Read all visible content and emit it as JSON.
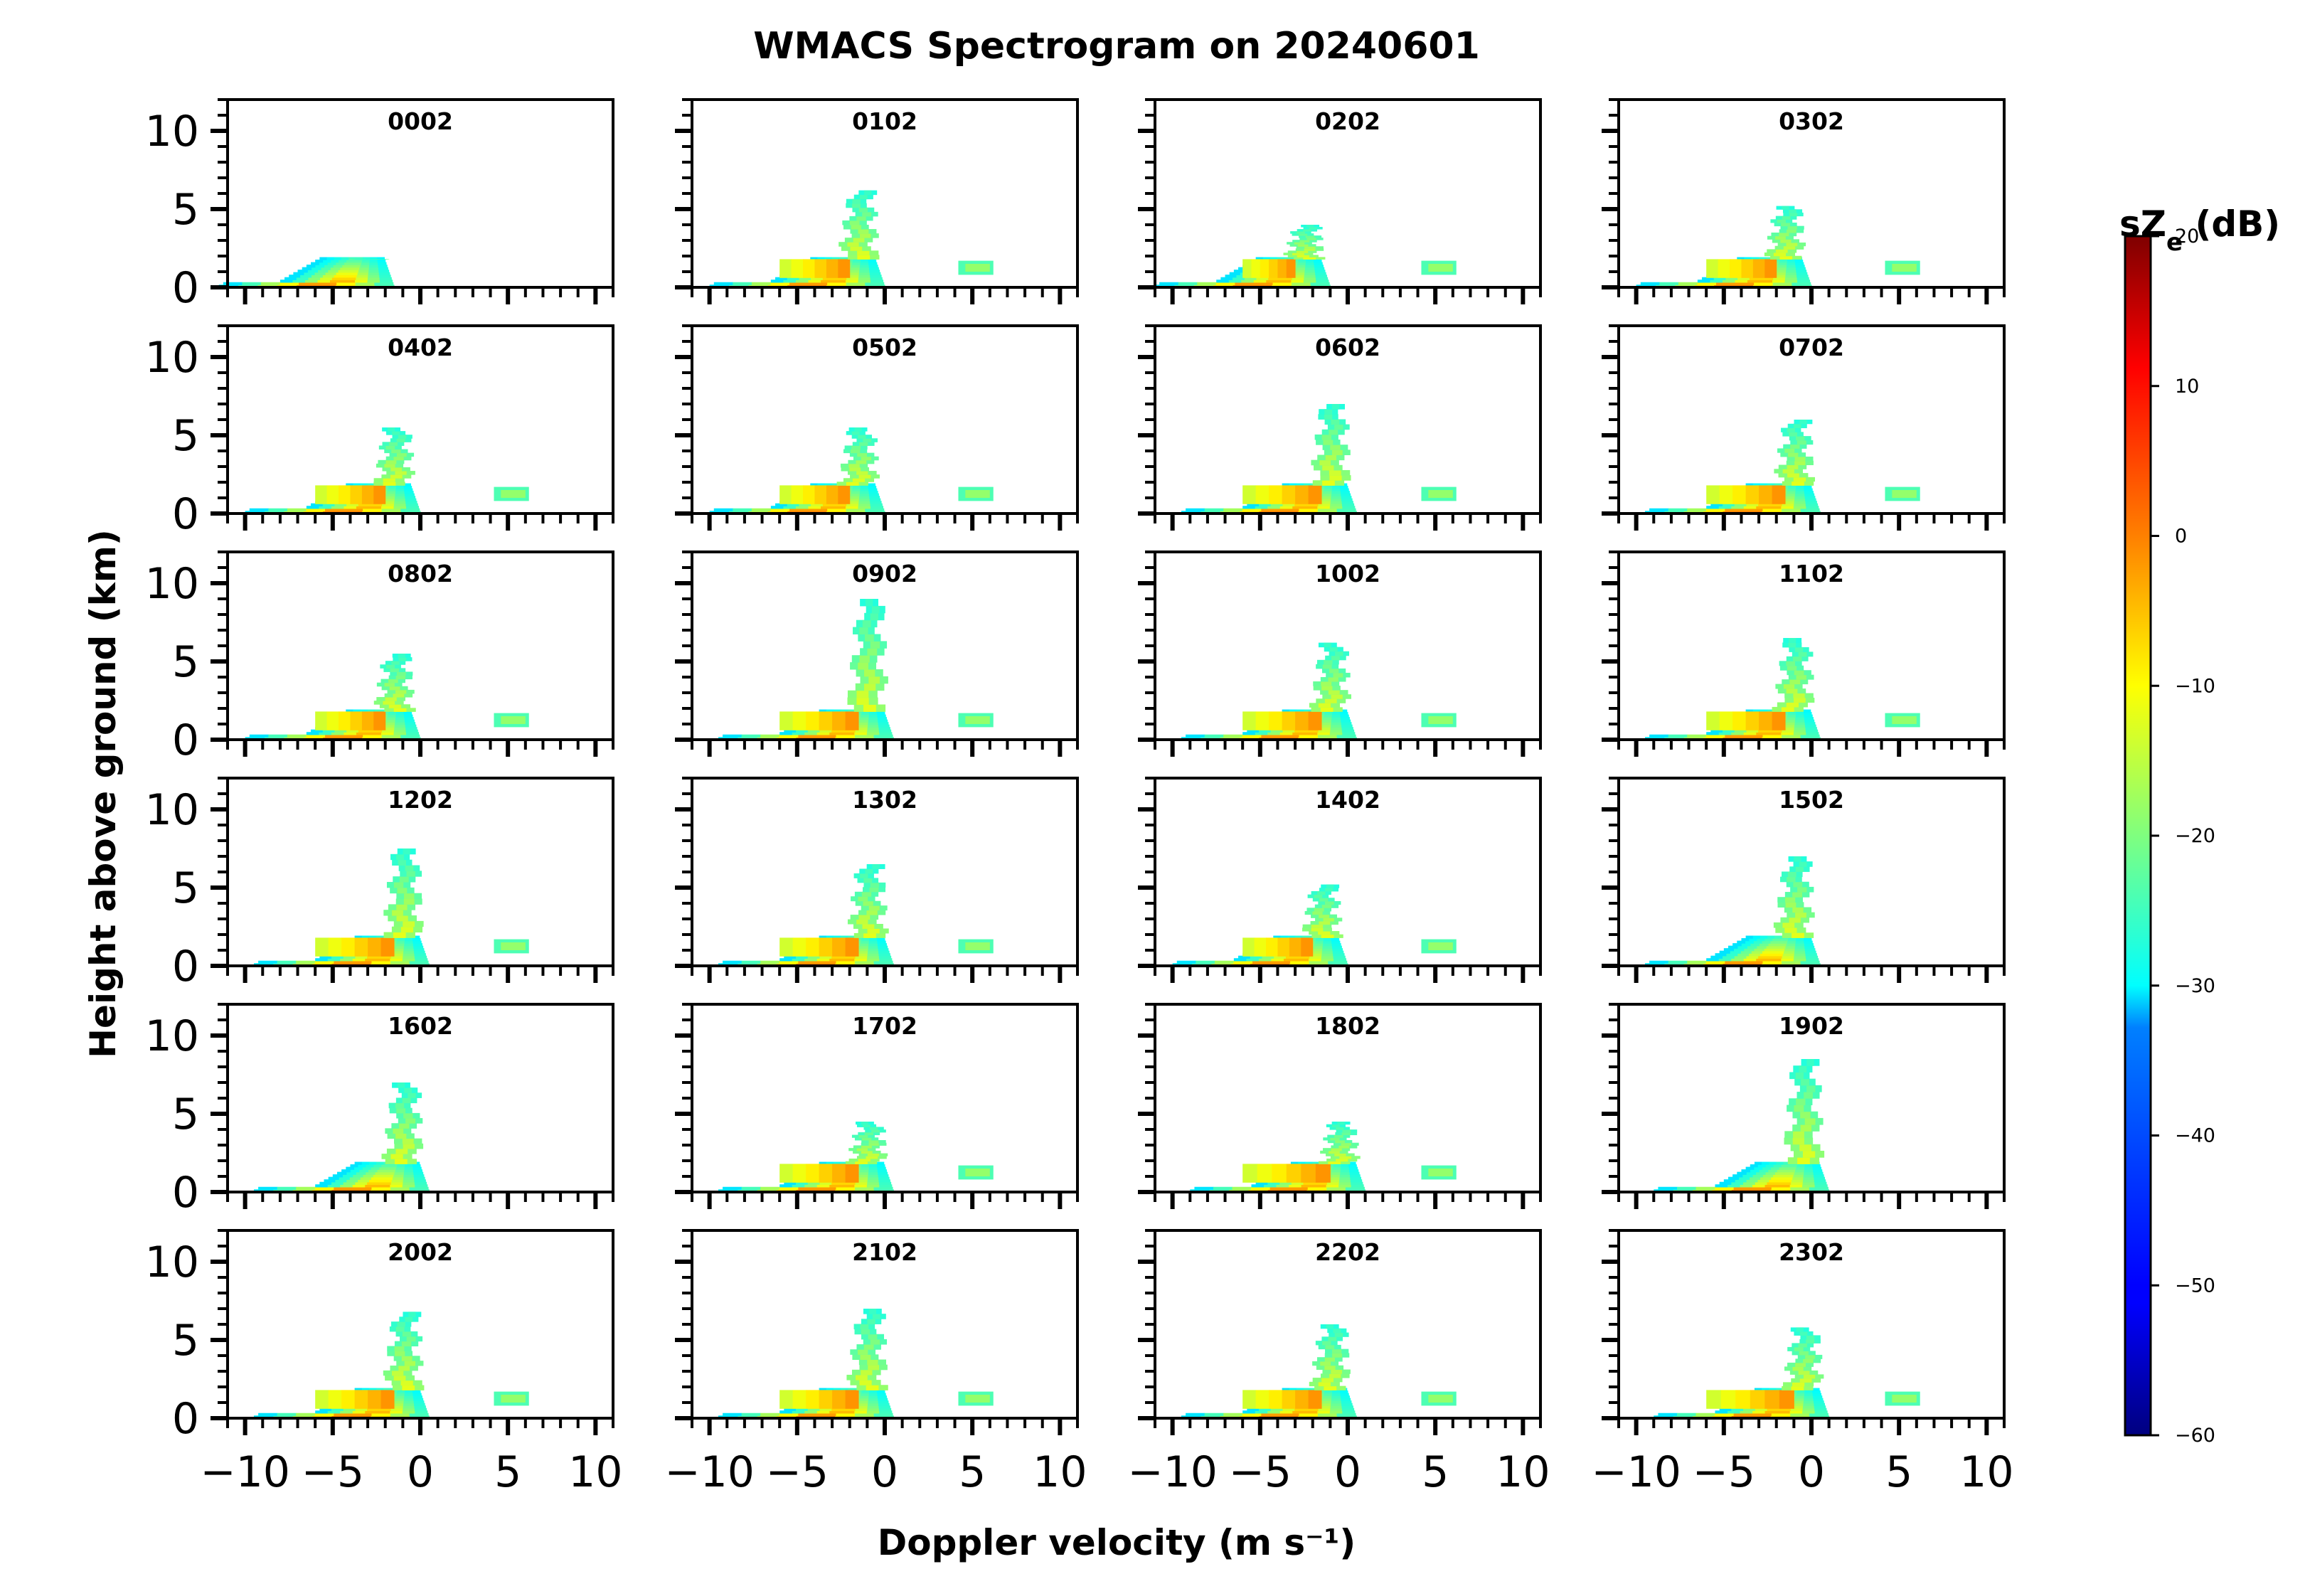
{
  "chart_data": {
    "type": "heatmap",
    "title": "WMACS Spectrogram on 20240601",
    "xlabel": "Doppler velocity (m s⁻¹)",
    "ylabel": "Height above ground (km)",
    "xlim": [
      -11,
      11
    ],
    "ylim": [
      0,
      12
    ],
    "x_ticks": [
      -10,
      -5,
      0,
      5,
      10
    ],
    "x_tick_labels": [
      "−10",
      "−5",
      "0",
      "5",
      "10"
    ],
    "y_ticks": [
      0,
      5,
      10
    ],
    "y_tick_labels": [
      "0",
      "5",
      "10"
    ],
    "grid": false,
    "colorbar": {
      "label": "sZ$_e$ (dB)",
      "label_text": "sZ",
      "label_sub": "e",
      "label_suffix": " (dB)",
      "min": -60,
      "max": 20,
      "ticks": [
        20,
        10,
        0,
        -10,
        -20,
        -30,
        -40,
        -50,
        -60
      ],
      "tick_labels": [
        "20",
        "10",
        "0",
        "−10",
        "−20",
        "−30",
        "−40",
        "−50",
        "−60"
      ],
      "colormap": "jet"
    },
    "panels": [
      {
        "time": "0002",
        "top_km": 1.8,
        "peak_v": -3.0,
        "box": false
      },
      {
        "time": "0102",
        "top_km": 6.2,
        "peak_v": -1.5,
        "box": true
      },
      {
        "time": "0202",
        "top_km": 4.0,
        "peak_v": -2.5,
        "box": true
      },
      {
        "time": "0302",
        "top_km": 5.2,
        "peak_v": -1.5,
        "box": true
      },
      {
        "time": "0402",
        "top_km": 5.5,
        "peak_v": -1.5,
        "box": true
      },
      {
        "time": "0502",
        "top_km": 5.5,
        "peak_v": -1.5,
        "box": true
      },
      {
        "time": "0602",
        "top_km": 7.0,
        "peak_v": -1.0,
        "box": true
      },
      {
        "time": "0702",
        "top_km": 6.0,
        "peak_v": -1.0,
        "box": true
      },
      {
        "time": "0802",
        "top_km": 5.5,
        "peak_v": -1.5,
        "box": true
      },
      {
        "time": "0902",
        "top_km": 9.0,
        "peak_v": -1.0,
        "box": true
      },
      {
        "time": "1002",
        "top_km": 6.2,
        "peak_v": -1.0,
        "box": true
      },
      {
        "time": "1102",
        "top_km": 6.5,
        "peak_v": -1.0,
        "box": true
      },
      {
        "time": "1202",
        "top_km": 7.5,
        "peak_v": -1.0,
        "box": true
      },
      {
        "time": "1302",
        "top_km": 6.5,
        "peak_v": -1.0,
        "box": true
      },
      {
        "time": "1402",
        "top_km": 5.2,
        "peak_v": -1.5,
        "box": true
      },
      {
        "time": "1502",
        "top_km": 7.0,
        "peak_v": -1.0,
        "box": false
      },
      {
        "time": "1602",
        "top_km": 7.0,
        "peak_v": -1.0,
        "box": false
      },
      {
        "time": "1702",
        "top_km": 4.5,
        "peak_v": -1.0,
        "box": true
      },
      {
        "time": "1802",
        "top_km": 4.5,
        "peak_v": -0.5,
        "box": true
      },
      {
        "time": "1902",
        "top_km": 8.5,
        "peak_v": -0.5,
        "box": false
      },
      {
        "time": "2002",
        "top_km": 6.8,
        "peak_v": -1.0,
        "box": true
      },
      {
        "time": "2102",
        "top_km": 7.0,
        "peak_v": -1.0,
        "box": true
      },
      {
        "time": "2202",
        "top_km": 6.0,
        "peak_v": -1.0,
        "box": true
      },
      {
        "time": "2302",
        "top_km": 5.8,
        "peak_v": -0.5,
        "box": true
      }
    ]
  }
}
